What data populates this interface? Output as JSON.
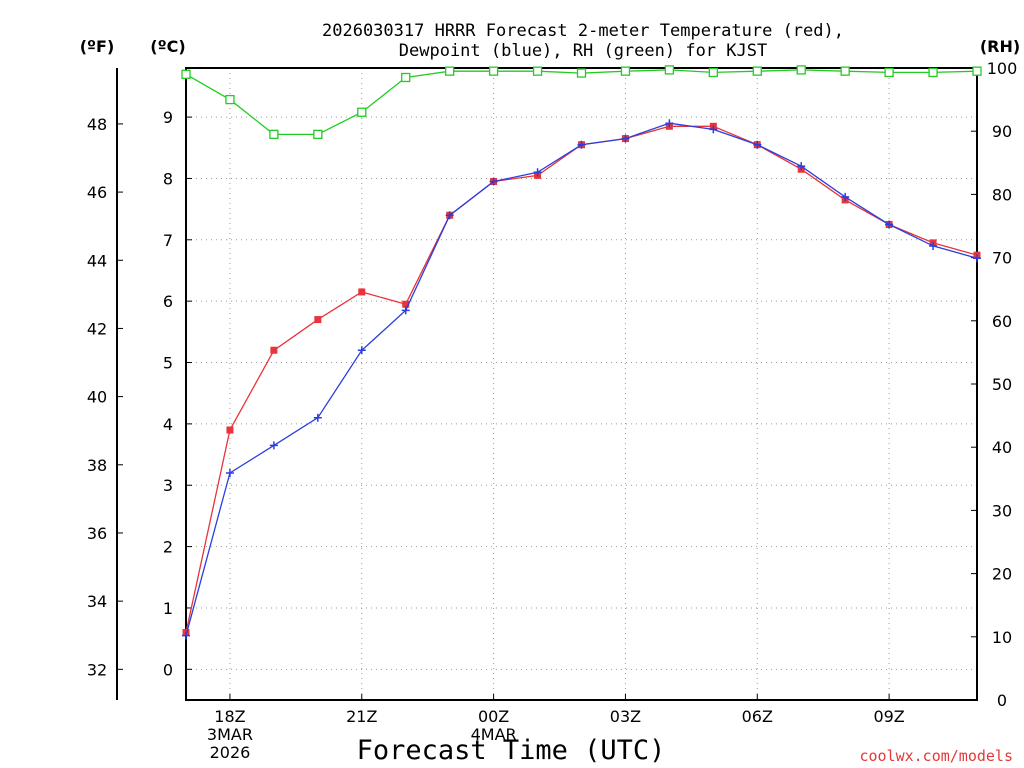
{
  "chart_data": {
    "type": "line",
    "title_lines": [
      "2026030317 HRRR Forecast 2-meter Temperature (red),",
      "Dewpoint (blue), RH (green) for KJST"
    ],
    "xlabel": "Forecast Time (UTC)",
    "credit": "coolwx.com/models",
    "units": {
      "fahrenheit": "(ºF)",
      "celsius": "(ºC)",
      "rh": "(RH)"
    },
    "x_hours": [
      17,
      18,
      19,
      20,
      21,
      22,
      23,
      24,
      25,
      26,
      27,
      28,
      29,
      30,
      31,
      32,
      33,
      34,
      35
    ],
    "x_ticks": [
      {
        "hour": 18,
        "lines": [
          "18Z",
          "3MAR",
          "2026"
        ]
      },
      {
        "hour": 21,
        "lines": [
          "21Z"
        ]
      },
      {
        "hour": 24,
        "lines": [
          "00Z",
          "4MAR"
        ]
      },
      {
        "hour": 27,
        "lines": [
          "03Z"
        ]
      },
      {
        "hour": 30,
        "lines": [
          "06Z"
        ]
      },
      {
        "hour": 33,
        "lines": [
          "09Z"
        ]
      }
    ],
    "x_range": [
      17,
      35
    ],
    "y_celsius_range": [
      -0.5,
      9.8
    ],
    "y_celsius_ticks": [
      0,
      1,
      2,
      3,
      4,
      5,
      6,
      7,
      8,
      9
    ],
    "y_fahrenheit_ticks": [
      32,
      34,
      36,
      38,
      40,
      42,
      44,
      46,
      48
    ],
    "y_rh_range": [
      0,
      100
    ],
    "y_rh_ticks": [
      0,
      10,
      20,
      30,
      40,
      50,
      60,
      70,
      80,
      90,
      100
    ],
    "series": [
      {
        "name": "Temperature",
        "axis": "celsius",
        "color": "#e8343a",
        "marker": "filled-square",
        "values": [
          0.6,
          3.9,
          5.2,
          5.7,
          6.15,
          5.95,
          7.4,
          7.95,
          8.05,
          8.55,
          8.65,
          8.85,
          8.85,
          8.55,
          8.15,
          7.65,
          7.25,
          6.95,
          6.75
        ]
      },
      {
        "name": "Dewpoint",
        "axis": "celsius",
        "color": "#2a3ee0",
        "marker": "plus",
        "values": [
          0.55,
          3.2,
          3.65,
          4.1,
          5.2,
          5.85,
          7.4,
          7.95,
          8.1,
          8.55,
          8.65,
          8.9,
          8.8,
          8.55,
          8.2,
          7.7,
          7.25,
          6.9,
          6.7
        ]
      },
      {
        "name": "RH",
        "axis": "rh",
        "color": "#22cc22",
        "marker": "open-square",
        "values": [
          99,
          95,
          89.5,
          89.5,
          93,
          98.5,
          99.5,
          99.5,
          99.5,
          99.2,
          99.5,
          99.7,
          99.3,
          99.5,
          99.7,
          99.5,
          99.3,
          99.3,
          99.5
        ]
      }
    ]
  }
}
